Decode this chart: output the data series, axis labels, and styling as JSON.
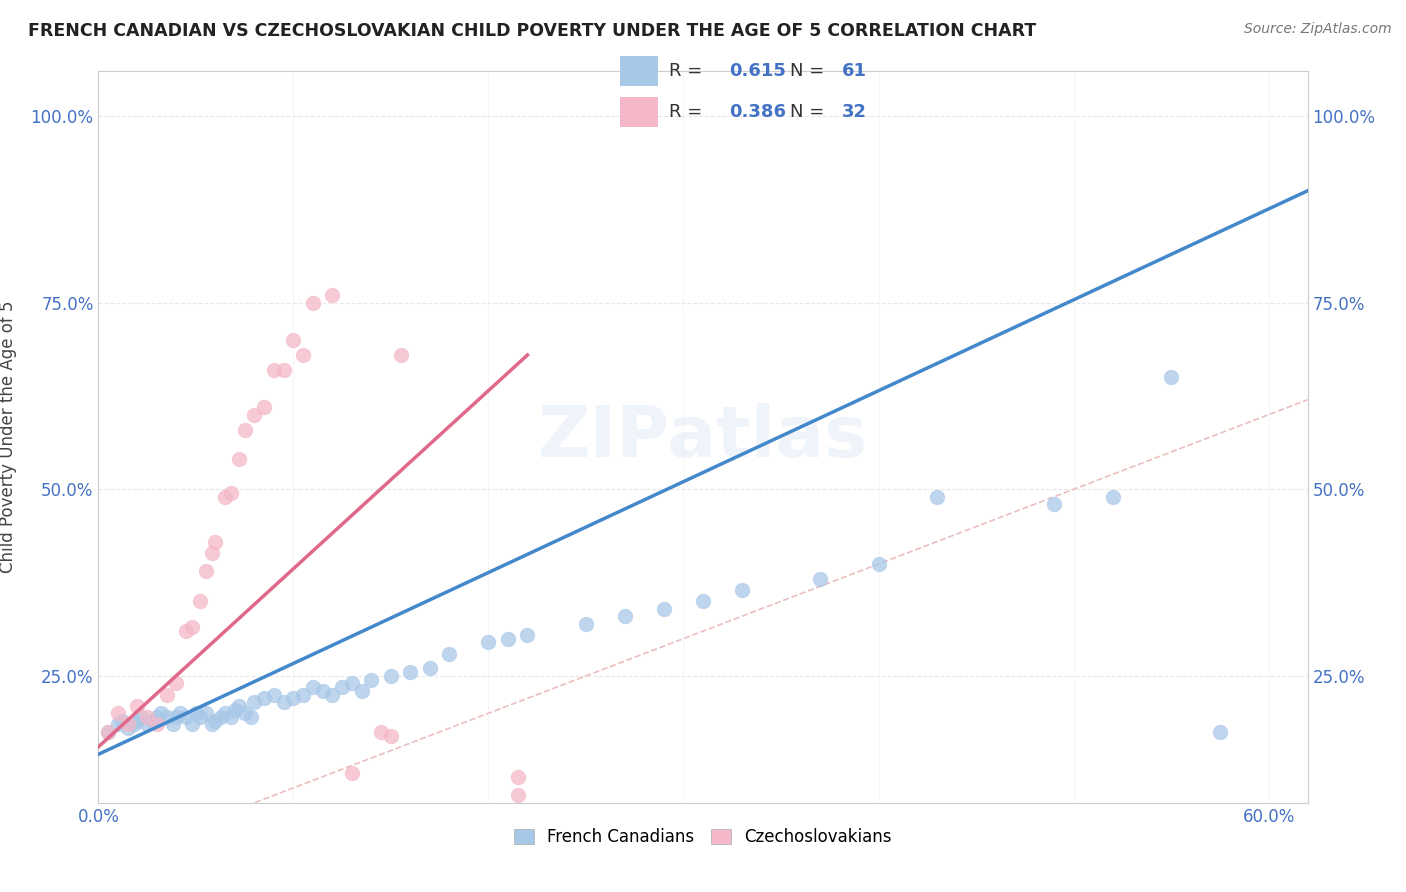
{
  "title": "FRENCH CANADIAN VS CZECHOSLOVAKIAN CHILD POVERTY UNDER THE AGE OF 5 CORRELATION CHART",
  "source": "Source: ZipAtlas.com",
  "ylabel": "Child Poverty Under the Age of 5",
  "xlim": [
    0.0,
    0.62
  ],
  "ylim": [
    0.08,
    1.06
  ],
  "xticks": [
    0.0,
    0.1,
    0.2,
    0.3,
    0.4,
    0.5,
    0.6
  ],
  "xticklabels": [
    "0.0%",
    "",
    "",
    "",
    "",
    "",
    "60.0%"
  ],
  "yticks": [
    0.25,
    0.5,
    0.75,
    1.0
  ],
  "yticklabels": [
    "25.0%",
    "50.0%",
    "75.0%",
    "100.0%"
  ],
  "blue_color": "#a8c8e8",
  "pink_color": "#f4b8c8",
  "blue_line_color": "#4488cc",
  "pink_line_color": "#e06888",
  "ref_line_color": "#e8b8b8",
  "watermark": "ZIPatlas",
  "french_canadians_x": [
    0.005,
    0.01,
    0.012,
    0.015,
    0.018,
    0.02,
    0.022,
    0.025,
    0.028,
    0.03,
    0.032,
    0.035,
    0.038,
    0.04,
    0.042,
    0.045,
    0.048,
    0.05,
    0.052,
    0.055,
    0.058,
    0.06,
    0.063,
    0.065,
    0.068,
    0.07,
    0.072,
    0.075,
    0.078,
    0.08,
    0.085,
    0.09,
    0.095,
    0.1,
    0.105,
    0.11,
    0.115,
    0.12,
    0.125,
    0.13,
    0.135,
    0.14,
    0.15,
    0.16,
    0.17,
    0.18,
    0.2,
    0.21,
    0.22,
    0.25,
    0.27,
    0.29,
    0.31,
    0.33,
    0.37,
    0.4,
    0.43,
    0.49,
    0.52,
    0.55,
    0.575
  ],
  "french_canadians_y": [
    0.175,
    0.185,
    0.19,
    0.18,
    0.185,
    0.19,
    0.195,
    0.185,
    0.19,
    0.195,
    0.2,
    0.195,
    0.185,
    0.195,
    0.2,
    0.195,
    0.185,
    0.2,
    0.195,
    0.2,
    0.185,
    0.19,
    0.195,
    0.2,
    0.195,
    0.205,
    0.21,
    0.2,
    0.195,
    0.215,
    0.22,
    0.225,
    0.215,
    0.22,
    0.225,
    0.235,
    0.23,
    0.225,
    0.235,
    0.24,
    0.23,
    0.245,
    0.25,
    0.255,
    0.26,
    0.28,
    0.295,
    0.3,
    0.305,
    0.32,
    0.33,
    0.34,
    0.35,
    0.365,
    0.38,
    0.4,
    0.49,
    0.48,
    0.49,
    0.65,
    0.175
  ],
  "czechoslovakians_x": [
    0.005,
    0.01,
    0.015,
    0.02,
    0.025,
    0.03,
    0.035,
    0.04,
    0.045,
    0.048,
    0.052,
    0.055,
    0.058,
    0.06,
    0.065,
    0.068,
    0.072,
    0.075,
    0.08,
    0.085,
    0.09,
    0.095,
    0.1,
    0.105,
    0.11,
    0.12,
    0.13,
    0.145,
    0.15,
    0.155,
    0.215,
    0.215
  ],
  "czechoslovakians_y": [
    0.175,
    0.2,
    0.185,
    0.21,
    0.195,
    0.185,
    0.225,
    0.24,
    0.31,
    0.315,
    0.35,
    0.39,
    0.415,
    0.43,
    0.49,
    0.495,
    0.54,
    0.58,
    0.6,
    0.61,
    0.66,
    0.66,
    0.7,
    0.68,
    0.75,
    0.76,
    0.12,
    0.175,
    0.17,
    0.68,
    0.09,
    0.115
  ],
  "blue_line_x": [
    0.0,
    0.62
  ],
  "blue_line_y": [
    0.145,
    0.9
  ],
  "pink_line_x": [
    0.0,
    0.22
  ],
  "pink_line_y": [
    0.155,
    0.68
  ],
  "background_color": "#ffffff",
  "grid_color": "#e8e8e8"
}
